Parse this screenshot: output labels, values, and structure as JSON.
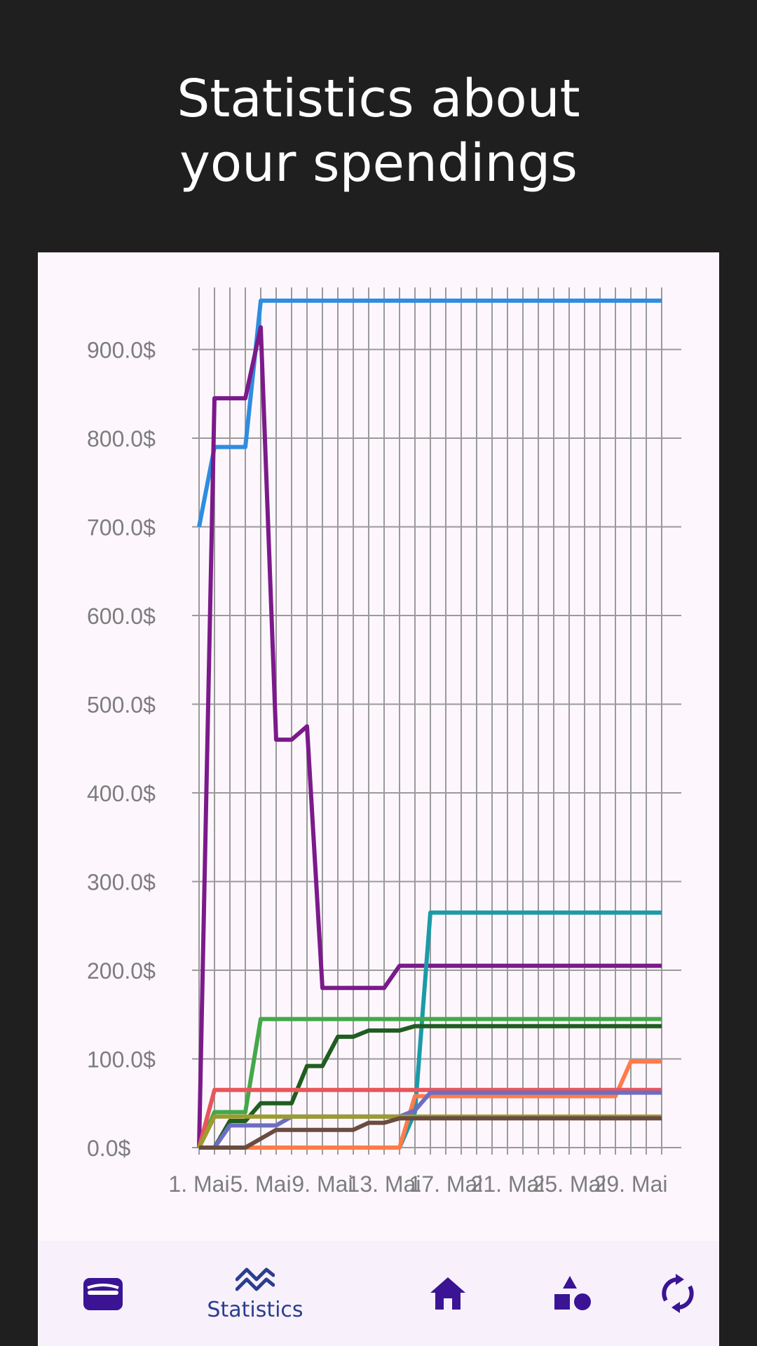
{
  "headline": {
    "line1": "Statistics about",
    "line2": "your spendings"
  },
  "chart_data": {
    "type": "line",
    "ylim": [
      0,
      1000
    ],
    "y_ticks": [
      0,
      100,
      200,
      300,
      400,
      500,
      600,
      700,
      800,
      900
    ],
    "y_tick_labels": [
      "0.0$",
      "100.0$",
      "200.0$",
      "300.0$",
      "400.0$",
      "500.0$",
      "600.0$",
      "700.0$",
      "800.0$",
      "900.0$"
    ],
    "x_range": [
      1,
      31
    ],
    "x_ticks": [
      1,
      5,
      9,
      13,
      17,
      21,
      25,
      29
    ],
    "x_tick_labels": [
      "1. Mai",
      "5. Mai",
      "9. Mai",
      "13. Mai",
      "17. Mai",
      "21. Mai",
      "25. Mai",
      "29. Mai"
    ],
    "grid": true,
    "legend": "none",
    "series": [
      {
        "color": "#2e8de0",
        "points": [
          [
            1,
            700
          ],
          [
            2,
            790
          ],
          [
            4,
            790
          ],
          [
            5,
            955
          ],
          [
            31,
            955
          ]
        ]
      },
      {
        "color": "#7b1a8a",
        "points": [
          [
            1,
            0
          ],
          [
            2,
            845
          ],
          [
            4,
            845
          ],
          [
            5,
            925
          ],
          [
            6,
            460
          ],
          [
            7,
            460
          ],
          [
            8,
            475
          ],
          [
            9,
            180
          ],
          [
            13,
            180
          ],
          [
            14,
            205
          ],
          [
            31,
            205
          ]
        ]
      },
      {
        "color": "#1c9aa8",
        "points": [
          [
            1,
            0
          ],
          [
            14,
            0
          ],
          [
            15,
            40
          ],
          [
            16,
            265
          ],
          [
            31,
            265
          ]
        ]
      },
      {
        "color": "#43a84a",
        "points": [
          [
            1,
            0
          ],
          [
            2,
            40
          ],
          [
            4,
            40
          ],
          [
            5,
            145
          ],
          [
            31,
            145
          ]
        ]
      },
      {
        "color": "#1f5e20",
        "points": [
          [
            1,
            0
          ],
          [
            2,
            0
          ],
          [
            3,
            30
          ],
          [
            4,
            30
          ],
          [
            5,
            50
          ],
          [
            7,
            50
          ],
          [
            8,
            92
          ],
          [
            9,
            92
          ],
          [
            10,
            125
          ],
          [
            11,
            125
          ],
          [
            12,
            132
          ],
          [
            14,
            132
          ],
          [
            15,
            137
          ],
          [
            31,
            137
          ]
        ]
      },
      {
        "color": "#ff7b4a",
        "points": [
          [
            1,
            0
          ],
          [
            14,
            0
          ],
          [
            15,
            58
          ],
          [
            28,
            58
          ],
          [
            29,
            97
          ],
          [
            31,
            97
          ]
        ]
      },
      {
        "color": "#e8565a",
        "points": [
          [
            1,
            0
          ],
          [
            2,
            65
          ],
          [
            31,
            65
          ]
        ]
      },
      {
        "color": "#6c6ec2",
        "points": [
          [
            1,
            0
          ],
          [
            2,
            0
          ],
          [
            3,
            25
          ],
          [
            6,
            25
          ],
          [
            7,
            35
          ],
          [
            14,
            35
          ],
          [
            15,
            42
          ],
          [
            16,
            62
          ],
          [
            31,
            62
          ]
        ]
      },
      {
        "color": "#9c9c2e",
        "points": [
          [
            1,
            0
          ],
          [
            2,
            35
          ],
          [
            31,
            35
          ]
        ]
      },
      {
        "color": "#6a4c40",
        "points": [
          [
            1,
            0
          ],
          [
            4,
            0
          ],
          [
            6,
            20
          ],
          [
            11,
            20
          ],
          [
            12,
            28
          ],
          [
            13,
            28
          ],
          [
            14,
            33
          ],
          [
            31,
            33
          ]
        ]
      }
    ]
  },
  "nav": {
    "items": [
      {
        "name": "wallet",
        "icon": "wallet-icon",
        "label": ""
      },
      {
        "name": "statistics",
        "icon": "trending-icon",
        "label": "Statistics"
      },
      {
        "name": "home",
        "icon": "home-icon",
        "label": ""
      },
      {
        "name": "categories",
        "icon": "shapes-icon",
        "label": ""
      },
      {
        "name": "recurring",
        "icon": "sync-icon",
        "label": ""
      }
    ]
  },
  "colors": {
    "nav_icon": "#3a1494",
    "nav_label": "#2a3e8f",
    "grid": "#9a9a9a"
  }
}
